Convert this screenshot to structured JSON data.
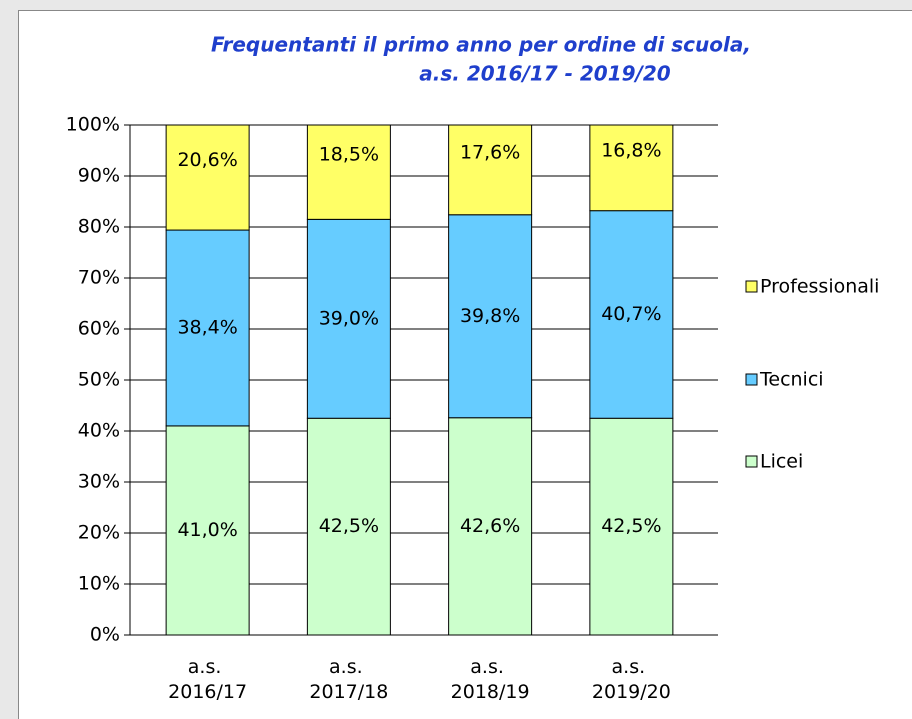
{
  "chart_data": {
    "type": "stacked_bar",
    "title": [
      "Frequentanti il primo anno per ordine di scuola,",
      "a.s. 2016/17 - 2019/20"
    ],
    "categories": [
      "a.s. 2016/17",
      "a.s. 2017/18",
      "a.s. 2018/19",
      "a.s. 2019/20"
    ],
    "series": [
      {
        "name": "Licei",
        "color": "#ccffcc",
        "values": [
          41.0,
          42.5,
          42.6,
          42.5
        ],
        "value_labels": [
          "41,0%",
          "42,5%",
          "42,6%",
          "42,5%"
        ]
      },
      {
        "name": "Tecnici",
        "color": "#66ccff",
        "values": [
          38.4,
          39.0,
          39.8,
          40.7
        ],
        "value_labels": [
          "38,4%",
          "39,0%",
          "39,8%",
          "40,7%"
        ]
      },
      {
        "name": "Professionali",
        "color": "#ffff66",
        "values": [
          20.6,
          18.5,
          17.6,
          16.8
        ],
        "value_labels": [
          "20,6%",
          "18,5%",
          "17,6%",
          "16,8%"
        ]
      }
    ],
    "ylim": [
      0,
      100
    ],
    "yticks": [
      {
        "value": 0,
        "label": "0%"
      },
      {
        "value": 10,
        "label": "10%"
      },
      {
        "value": 20,
        "label": "20%"
      },
      {
        "value": 30,
        "label": "30%"
      },
      {
        "value": 40,
        "label": "40%"
      },
      {
        "value": 50,
        "label": "50%"
      },
      {
        "value": 60,
        "label": "60%"
      },
      {
        "value": 70,
        "label": "70%"
      },
      {
        "value": 80,
        "label": "80%"
      },
      {
        "value": 90,
        "label": "90%"
      },
      {
        "value": 100,
        "label": "100%"
      }
    ],
    "grid": true,
    "legend": "right"
  }
}
